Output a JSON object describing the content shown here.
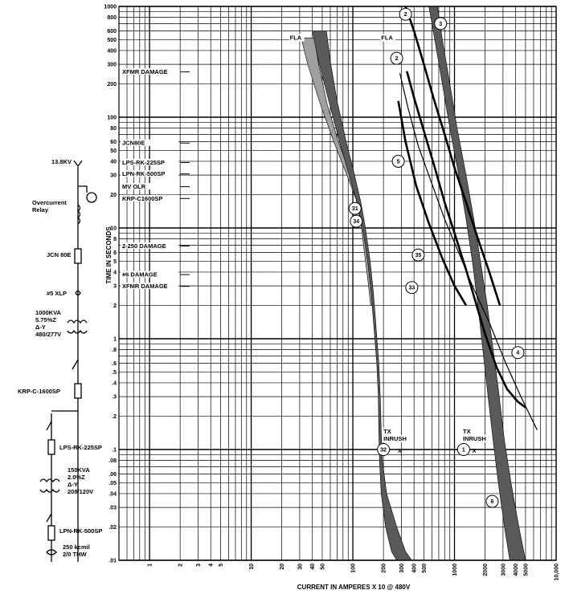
{
  "chart_data": {
    "type": "line",
    "scale": "log-log",
    "title": "",
    "xlabel": "CURRENT IN AMPERES X 10 @ 480V",
    "ylabel": "TIME IN SECONDS",
    "xlim": [
      0.5,
      10000
    ],
    "ylim": [
      0.01,
      1000
    ],
    "grid": true,
    "x_tick_labels": [
      "1",
      "2",
      "3",
      "4",
      "5",
      "10",
      "20",
      "30",
      "40",
      "50",
      "100",
      "200",
      "300",
      "400",
      "500",
      "1000",
      "2000",
      "3000",
      "4000",
      "5000",
      "10,000"
    ],
    "x_ticks": [
      1,
      2,
      3,
      4,
      5,
      10,
      20,
      30,
      40,
      50,
      100,
      200,
      300,
      400,
      500,
      1000,
      2000,
      3000,
      4000,
      5000,
      10000
    ],
    "y_tick_labels": [
      "1000",
      "800",
      "600",
      "500",
      "400",
      "300",
      "200",
      "100",
      "80",
      "60",
      "50",
      "40",
      "30",
      "20",
      "10",
      "8",
      "6",
      "5",
      "4",
      "3",
      "2",
      "1",
      ".8",
      ".6",
      ".5",
      ".4",
      ".3",
      ".2",
      ".1",
      ".08",
      ".06",
      ".05",
      ".04",
      ".03",
      ".02",
      ".01"
    ],
    "y_ticks": [
      1000,
      800,
      600,
      500,
      400,
      300,
      200,
      100,
      80,
      60,
      50,
      40,
      30,
      20,
      10,
      8,
      6,
      5,
      4,
      3,
      2,
      1,
      0.8,
      0.6,
      0.5,
      0.4,
      0.3,
      0.2,
      0.1,
      0.08,
      0.06,
      0.05,
      0.04,
      0.03,
      0.02,
      0.01
    ],
    "device_labels": [
      {
        "text": "XFMR DAMAGE",
        "y": 250
      },
      {
        "text": "JCN80E",
        "y": 57
      },
      {
        "text": "LPS-RK-225SP",
        "y": 38
      },
      {
        "text": "LPN-RK-500SP",
        "y": 30
      },
      {
        "text": "MV OLR",
        "y": 23
      },
      {
        "text": "KRP-C1600SP",
        "y": 18
      },
      {
        "text": "2-250 DAMAGE",
        "y": 6.7
      },
      {
        "text": "#6 DAMAGE",
        "y": 3.7
      },
      {
        "text": "XFMR DAMAGE",
        "y": 2.9
      }
    ],
    "annotations": [
      {
        "text": "FLA",
        "x": 24,
        "y": 500
      },
      {
        "text": "FLA",
        "x": 190,
        "y": 500
      },
      {
        "text": "TX",
        "x": 200,
        "y": 0.14
      },
      {
        "text": "INRUSH",
        "x": 200,
        "y": 0.12
      },
      {
        "text": "TX",
        "x": 1210,
        "y": 0.14
      },
      {
        "text": "INRUSH",
        "x": 1210,
        "y": 0.12
      }
    ],
    "markers": [
      {
        "label": "X",
        "x": 290,
        "y": 0.1
      },
      {
        "label": "X",
        "x": 1560,
        "y": 0.1
      }
    ],
    "callouts": [
      {
        "num": "2",
        "x": 330,
        "y": 850
      },
      {
        "num": "3",
        "x": 730,
        "y": 700
      },
      {
        "num": "2",
        "x": 270,
        "y": 340
      },
      {
        "num": "5",
        "x": 280,
        "y": 40
      },
      {
        "num": "31",
        "x": 105,
        "y": 15
      },
      {
        "num": "34",
        "x": 108,
        "y": 11.5
      },
      {
        "num": "35",
        "x": 440,
        "y": 5.7
      },
      {
        "num": "33",
        "x": 380,
        "y": 2.9
      },
      {
        "num": "4",
        "x": 4200,
        "y": 0.75
      },
      {
        "num": "32",
        "x": 200,
        "y": 0.1
      },
      {
        "num": "1",
        "x": 1230,
        "y": 0.1
      },
      {
        "num": "6",
        "x": 2350,
        "y": 0.034
      }
    ],
    "series": [
      {
        "type": "band",
        "fill": "#a0a0a0",
        "left": [
          [
            31,
            520
          ],
          [
            36,
            300
          ],
          [
            48,
            130
          ],
          [
            65,
            60
          ],
          [
            85,
            32
          ],
          [
            108,
            18
          ],
          [
            120,
            11
          ],
          [
            130,
            6
          ],
          [
            140,
            3.5
          ],
          [
            150,
            2
          ]
        ],
        "right": [
          [
            42,
            520
          ],
          [
            46,
            300
          ],
          [
            56,
            130
          ],
          [
            72,
            60
          ],
          [
            93,
            32
          ],
          [
            115,
            18
          ],
          [
            127,
            11
          ],
          [
            137,
            6
          ],
          [
            147,
            3.5
          ],
          [
            157,
            2
          ]
        ]
      },
      {
        "type": "band",
        "fill": "#5a5a5a",
        "left": [
          [
            40,
            600
          ],
          [
            46,
            320
          ],
          [
            58,
            140
          ],
          [
            74,
            60
          ],
          [
            92,
            30
          ],
          [
            110,
            17
          ],
          [
            125,
            10
          ],
          [
            140,
            5
          ],
          [
            152,
            2.5
          ],
          [
            162,
            1.2
          ],
          [
            172,
            0.6
          ],
          [
            178,
            0.3
          ],
          [
            180,
            0.15
          ],
          [
            183,
            0.08
          ],
          [
            190,
            0.04
          ],
          [
            210,
            0.02
          ],
          [
            240,
            0.012
          ],
          [
            270,
            0.01
          ]
        ],
        "right": [
          [
            55,
            600
          ],
          [
            60,
            320
          ],
          [
            70,
            140
          ],
          [
            86,
            60
          ],
          [
            104,
            30
          ],
          [
            120,
            17
          ],
          [
            133,
            10
          ],
          [
            148,
            5
          ],
          [
            160,
            2.5
          ],
          [
            170,
            1.2
          ],
          [
            180,
            0.6
          ],
          [
            186,
            0.3
          ],
          [
            190,
            0.15
          ],
          [
            195,
            0.08
          ],
          [
            215,
            0.04
          ],
          [
            270,
            0.02
          ],
          [
            330,
            0.012
          ],
          [
            380,
            0.01
          ]
        ]
      },
      {
        "type": "band",
        "fill": "#5a5a5a",
        "left": [
          [
            560,
            1000
          ],
          [
            640,
            500
          ],
          [
            760,
            200
          ],
          [
            900,
            80
          ],
          [
            1100,
            30
          ],
          [
            1300,
            12
          ],
          [
            1500,
            5
          ],
          [
            1700,
            2
          ],
          [
            1900,
            0.8
          ],
          [
            2100,
            0.35
          ],
          [
            2400,
            0.12
          ],
          [
            2700,
            0.05
          ],
          [
            3100,
            0.02
          ],
          [
            3500,
            0.01
          ]
        ],
        "right": [
          [
            680,
            1000
          ],
          [
            760,
            500
          ],
          [
            900,
            200
          ],
          [
            1060,
            80
          ],
          [
            1300,
            30
          ],
          [
            1550,
            12
          ],
          [
            1800,
            5
          ],
          [
            2100,
            2
          ],
          [
            2400,
            0.8
          ],
          [
            2700,
            0.35
          ],
          [
            3100,
            0.12
          ],
          [
            3600,
            0.05
          ],
          [
            4300,
            0.02
          ],
          [
            5000,
            0.01
          ]
        ]
      },
      {
        "type": "line",
        "stroke": "#000",
        "width": 2.6,
        "points": [
          [
            330,
            1000
          ],
          [
            400,
            600
          ],
          [
            500,
            300
          ],
          [
            620,
            150
          ],
          [
            800,
            70
          ],
          [
            1000,
            35
          ],
          [
            1300,
            17
          ],
          [
            1700,
            8
          ],
          [
            2200,
            4
          ],
          [
            2800,
            2
          ]
        ]
      },
      {
        "type": "line",
        "stroke": "#000",
        "width": 2.6,
        "points": [
          [
            340,
            260
          ],
          [
            400,
            150
          ],
          [
            500,
            75
          ],
          [
            640,
            35
          ],
          [
            800,
            17
          ],
          [
            1000,
            9
          ],
          [
            1300,
            4.2
          ],
          [
            1600,
            2.2
          ],
          [
            2000,
            1.1
          ],
          [
            2600,
            0.55
          ],
          [
            3300,
            0.35
          ],
          [
            4200,
            0.27
          ],
          [
            5000,
            0.24
          ]
        ]
      },
      {
        "type": "line",
        "stroke": "#000",
        "width": 2.6,
        "points": [
          [
            280,
            140
          ],
          [
            330,
            60
          ],
          [
            420,
            24
          ],
          [
            560,
            11
          ],
          [
            760,
            5.3
          ],
          [
            1000,
            3
          ],
          [
            1300,
            2
          ]
        ]
      },
      {
        "type": "line",
        "stroke": "#000",
        "width": 1.2,
        "points": [
          [
            290,
            250
          ],
          [
            350,
            120
          ],
          [
            440,
            55
          ],
          [
            600,
            25
          ],
          [
            800,
            12
          ],
          [
            1100,
            6
          ],
          [
            1500,
            3
          ],
          [
            2200,
            1.4
          ],
          [
            3200,
            0.6
          ],
          [
            4500,
            0.3
          ],
          [
            6500,
            0.15
          ]
        ]
      }
    ]
  },
  "one_line": {
    "source_label": "13.8KV",
    "relay_label_1": "Overcurrent",
    "relay_label_2": "Relay",
    "fuse1_label": "JCN 80E",
    "cable1_label": "#5 XLP",
    "xfmr1_lines": [
      "1000KVA",
      "5.75%Z",
      "Δ-Y",
      "480/277V"
    ],
    "breaker_label": "KRP-C-1600SP",
    "fuse2_label": "LPS-RK-225SP",
    "xfmr2_lines": [
      "150KVA",
      "2.0%Z",
      "Δ-Y",
      "208/120V"
    ],
    "fuse3_label": "LPN-RK-500SP",
    "cable2_lines": [
      "250 kcmil",
      "2/0 THW"
    ]
  }
}
